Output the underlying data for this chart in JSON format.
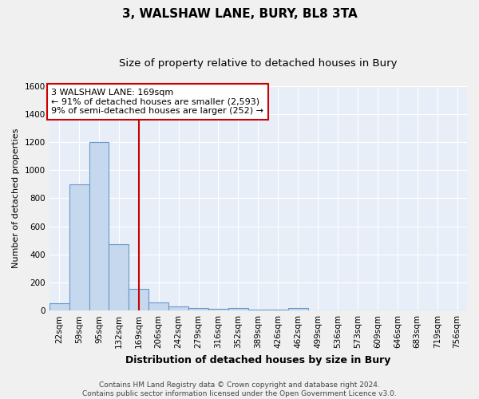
{
  "title": "3, WALSHAW LANE, BURY, BL8 3TA",
  "subtitle": "Size of property relative to detached houses in Bury",
  "xlabel": "Distribution of detached houses by size in Bury",
  "ylabel": "Number of detached properties",
  "bar_labels": [
    "22sqm",
    "59sqm",
    "95sqm",
    "132sqm",
    "169sqm",
    "206sqm",
    "242sqm",
    "279sqm",
    "316sqm",
    "352sqm",
    "389sqm",
    "426sqm",
    "462sqm",
    "499sqm",
    "536sqm",
    "573sqm",
    "609sqm",
    "646sqm",
    "683sqm",
    "719sqm",
    "756sqm"
  ],
  "bar_values": [
    50,
    900,
    1200,
    470,
    155,
    60,
    30,
    20,
    15,
    20,
    5,
    5,
    20,
    0,
    0,
    0,
    0,
    0,
    0,
    0,
    0
  ],
  "bar_color": "#c5d8ee",
  "bar_edgecolor": "#6699cc",
  "background_color": "#e8eef8",
  "grid_color": "#ffffff",
  "red_line_index": 4,
  "annotation_text": "3 WALSHAW LANE: 169sqm\n← 91% of detached houses are smaller (2,593)\n9% of semi-detached houses are larger (252) →",
  "annotation_box_facecolor": "#ffffff",
  "annotation_box_edgecolor": "#cc0000",
  "ylim_max": 1600,
  "yticks": [
    0,
    200,
    400,
    600,
    800,
    1000,
    1200,
    1400,
    1600
  ],
  "footer_text": "Contains HM Land Registry data © Crown copyright and database right 2024.\nContains public sector information licensed under the Open Government Licence v3.0.",
  "title_fontsize": 11,
  "subtitle_fontsize": 9.5,
  "xlabel_fontsize": 9,
  "ylabel_fontsize": 8,
  "tick_fontsize": 7.5,
  "annotation_fontsize": 8,
  "footer_fontsize": 6.5
}
